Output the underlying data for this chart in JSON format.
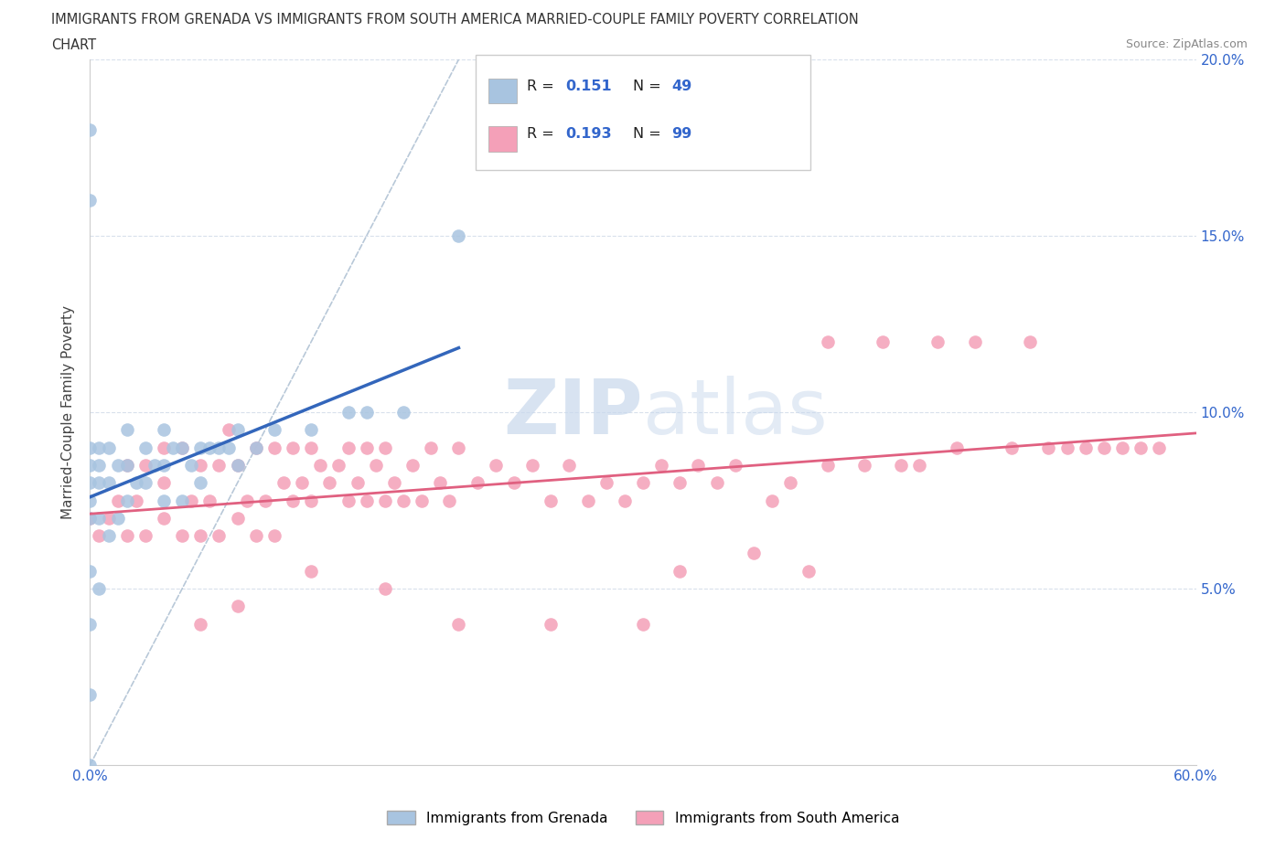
{
  "title_line1": "IMMIGRANTS FROM GRENADA VS IMMIGRANTS FROM SOUTH AMERICA MARRIED-COUPLE FAMILY POVERTY CORRELATION",
  "title_line2": "CHART",
  "source_text": "Source: ZipAtlas.com",
  "ylabel": "Married-Couple Family Poverty",
  "xlim": [
    0,
    0.6
  ],
  "ylim": [
    0,
    0.2
  ],
  "xtick_positions": [
    0.0,
    0.1,
    0.2,
    0.3,
    0.4,
    0.5,
    0.6
  ],
  "xtick_labels": [
    "0.0%",
    "",
    "",
    "",
    "",
    "",
    "60.0%"
  ],
  "ytick_positions": [
    0.0,
    0.05,
    0.1,
    0.15,
    0.2
  ],
  "ytick_labels_right": [
    "",
    "5.0%",
    "10.0%",
    "15.0%",
    "20.0%"
  ],
  "R_grenada": 0.151,
  "N_grenada": 49,
  "R_south_america": 0.193,
  "N_south_america": 99,
  "grenada_color": "#a8c4e0",
  "south_america_color": "#f4a0b8",
  "trendline_grenada_color": "#3366bb",
  "trendline_south_america_color": "#e06080",
  "diagonal_color": "#b8c8d8",
  "watermark_color": "#c8d8ec",
  "legend_box_color": "#dddddd",
  "tick_label_color": "#3366cc",
  "grenada_x": [
    0.0,
    0.0,
    0.0,
    0.0,
    0.0,
    0.0,
    0.0,
    0.0,
    0.0,
    0.0,
    0.0,
    0.005,
    0.005,
    0.005,
    0.005,
    0.005,
    0.01,
    0.01,
    0.01,
    0.015,
    0.015,
    0.02,
    0.02,
    0.02,
    0.025,
    0.03,
    0.03,
    0.035,
    0.04,
    0.04,
    0.04,
    0.045,
    0.05,
    0.05,
    0.055,
    0.06,
    0.06,
    0.065,
    0.07,
    0.075,
    0.08,
    0.08,
    0.09,
    0.1,
    0.12,
    0.14,
    0.15,
    0.17,
    0.2
  ],
  "grenada_y": [
    0.0,
    0.02,
    0.04,
    0.055,
    0.07,
    0.075,
    0.08,
    0.085,
    0.09,
    0.16,
    0.18,
    0.05,
    0.07,
    0.08,
    0.085,
    0.09,
    0.065,
    0.08,
    0.09,
    0.07,
    0.085,
    0.075,
    0.085,
    0.095,
    0.08,
    0.08,
    0.09,
    0.085,
    0.075,
    0.085,
    0.095,
    0.09,
    0.075,
    0.09,
    0.085,
    0.08,
    0.09,
    0.09,
    0.09,
    0.09,
    0.085,
    0.095,
    0.09,
    0.095,
    0.095,
    0.1,
    0.1,
    0.1,
    0.15
  ],
  "sa_x": [
    0.0,
    0.005,
    0.01,
    0.015,
    0.02,
    0.02,
    0.025,
    0.03,
    0.03,
    0.04,
    0.04,
    0.04,
    0.05,
    0.05,
    0.055,
    0.06,
    0.06,
    0.065,
    0.07,
    0.07,
    0.075,
    0.08,
    0.08,
    0.085,
    0.09,
    0.09,
    0.095,
    0.1,
    0.1,
    0.105,
    0.11,
    0.11,
    0.115,
    0.12,
    0.12,
    0.125,
    0.13,
    0.135,
    0.14,
    0.14,
    0.145,
    0.15,
    0.15,
    0.155,
    0.16,
    0.16,
    0.165,
    0.17,
    0.175,
    0.18,
    0.185,
    0.19,
    0.195,
    0.2,
    0.21,
    0.22,
    0.23,
    0.24,
    0.25,
    0.26,
    0.27,
    0.28,
    0.29,
    0.3,
    0.31,
    0.32,
    0.33,
    0.34,
    0.35,
    0.37,
    0.38,
    0.4,
    0.42,
    0.44,
    0.45,
    0.47,
    0.5,
    0.52,
    0.54,
    0.56,
    0.58,
    0.4,
    0.43,
    0.46,
    0.48,
    0.51,
    0.53,
    0.55,
    0.57,
    0.32,
    0.36,
    0.39,
    0.2,
    0.25,
    0.3,
    0.12,
    0.16,
    0.08,
    0.06
  ],
  "sa_y": [
    0.07,
    0.065,
    0.07,
    0.075,
    0.065,
    0.085,
    0.075,
    0.065,
    0.085,
    0.07,
    0.08,
    0.09,
    0.065,
    0.09,
    0.075,
    0.065,
    0.085,
    0.075,
    0.065,
    0.085,
    0.095,
    0.07,
    0.085,
    0.075,
    0.065,
    0.09,
    0.075,
    0.065,
    0.09,
    0.08,
    0.075,
    0.09,
    0.08,
    0.075,
    0.09,
    0.085,
    0.08,
    0.085,
    0.075,
    0.09,
    0.08,
    0.075,
    0.09,
    0.085,
    0.075,
    0.09,
    0.08,
    0.075,
    0.085,
    0.075,
    0.09,
    0.08,
    0.075,
    0.09,
    0.08,
    0.085,
    0.08,
    0.085,
    0.075,
    0.085,
    0.075,
    0.08,
    0.075,
    0.08,
    0.085,
    0.08,
    0.085,
    0.08,
    0.085,
    0.075,
    0.08,
    0.085,
    0.085,
    0.085,
    0.085,
    0.09,
    0.09,
    0.09,
    0.09,
    0.09,
    0.09,
    0.12,
    0.12,
    0.12,
    0.12,
    0.12,
    0.09,
    0.09,
    0.09,
    0.055,
    0.06,
    0.055,
    0.04,
    0.04,
    0.04,
    0.055,
    0.05,
    0.045,
    0.04
  ]
}
